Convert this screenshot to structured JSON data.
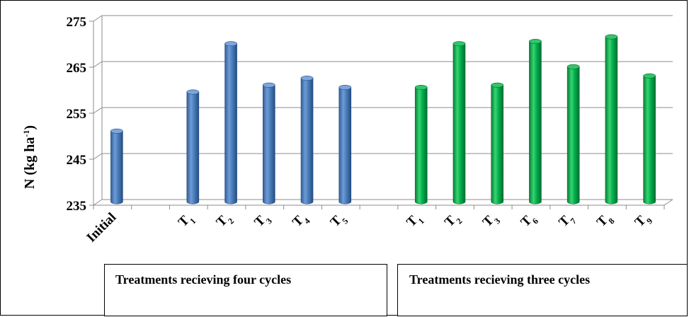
{
  "chart_data": {
    "type": "bar",
    "style": "3d-cylinder",
    "ylabel": "N (kg ha-1)",
    "ylabel_main": "N (kg ha",
    "ylabel_sup": "-1",
    "ylabel_close": ")",
    "ylim": [
      235,
      275
    ],
    "yticks": [
      235,
      245,
      255,
      265,
      275
    ],
    "grid": true,
    "categories": [
      {
        "label": "Initial",
        "base": "Initial",
        "sub": ""
      },
      {
        "label": "",
        "base": "",
        "sub": ""
      },
      {
        "label": "T1",
        "base": "T",
        "sub": "1"
      },
      {
        "label": "T2",
        "base": "T",
        "sub": "2"
      },
      {
        "label": "T3",
        "base": "T",
        "sub": "3"
      },
      {
        "label": "T4",
        "base": "T",
        "sub": "4"
      },
      {
        "label": "T5",
        "base": "T",
        "sub": "5"
      },
      {
        "label": "",
        "base": "",
        "sub": ""
      },
      {
        "label": "T1",
        "base": "T",
        "sub": "1"
      },
      {
        "label": "T2",
        "base": "T",
        "sub": "2"
      },
      {
        "label": "T3",
        "base": "T",
        "sub": "3"
      },
      {
        "label": "T6",
        "base": "T",
        "sub": "6"
      },
      {
        "label": "T7",
        "base": "T",
        "sub": "7"
      },
      {
        "label": "T8",
        "base": "T",
        "sub": "8"
      },
      {
        "label": "T9",
        "base": "T",
        "sub": "9"
      }
    ],
    "values": [
      250.5,
      null,
      259,
      269.5,
      260.5,
      262,
      260,
      null,
      260,
      269.5,
      260.5,
      270,
      264.5,
      271,
      262.5
    ],
    "bar_colors": [
      "#4a7ebb",
      null,
      "#4a7ebb",
      "#4a7ebb",
      "#4a7ebb",
      "#4a7ebb",
      "#4a7ebb",
      null,
      "#00b050",
      "#00b050",
      "#00b050",
      "#00b050",
      "#00b050",
      "#00b050",
      "#00b050"
    ],
    "groups": [
      {
        "label": "Treatments recieving four cycles",
        "color": "#4a7ebb"
      },
      {
        "label": "Treatments recieving three cycles",
        "color": "#00b050"
      }
    ]
  }
}
